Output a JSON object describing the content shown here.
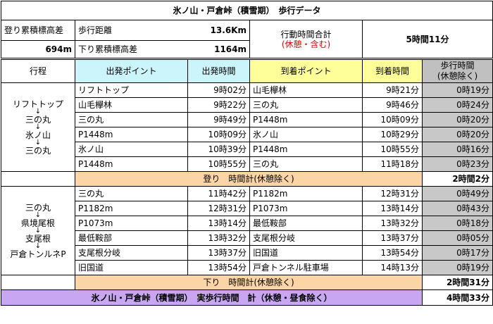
{
  "title": "氷ノ山・戸倉峠（積雪期）　歩行データ",
  "summary": {
    "ascent_label": "登り累積標高差",
    "ascent_value": "694m",
    "distance_label": "歩行距離",
    "distance_value": "13.6Km",
    "descent_label": "下り累積標高差",
    "descent_value": "1164m",
    "action_time_label": "行動時間合計",
    "action_time_note": "(休憩・含む)",
    "action_time_value": "5時間11分"
  },
  "headers": {
    "route": "行程",
    "depart_point": "出発ポイント",
    "depart_time": "出発時間",
    "arrive_point": "到着ポイント",
    "arrive_time": "到着時間",
    "walk_time_1": "歩行時間",
    "walk_time_2": "(休憩除く)"
  },
  "sections": [
    {
      "route": [
        "リフトトップ",
        "三の丸",
        "氷ノ山",
        "三の丸"
      ],
      "rows": [
        {
          "from": "リフトトップ",
          "dep": "9時02分",
          "to": "山毛欅林",
          "arr": "9時21分",
          "walk": "0時19分"
        },
        {
          "from": "山毛欅林",
          "dep": "9時22分",
          "to": "三の丸",
          "arr": "9時46分",
          "walk": "0時24分"
        },
        {
          "from": "三の丸",
          "dep": "9時49分",
          "to": "P1448m",
          "arr": "10時09分",
          "walk": "0時20分"
        },
        {
          "from": "P1448m",
          "dep": "10時09分",
          "to": "氷ノ山",
          "arr": "10時29分",
          "walk": "0時20分"
        },
        {
          "from": "氷ノ山",
          "dep": "10時39分",
          "to": "P1448m",
          "arr": "10時55分",
          "walk": "0時16分"
        },
        {
          "from": "P1448m",
          "dep": "10時55分",
          "to": "三の丸",
          "arr": "11時18分",
          "walk": "0時23分"
        }
      ],
      "subtotal_label": "登り　時間計(休憩除く)",
      "subtotal_value": "2時間2分"
    },
    {
      "route": [
        "三の丸",
        "県境尾根",
        "支尾根",
        "戸倉トンルネP"
      ],
      "rows": [
        {
          "from": "三の丸",
          "dep": "11時42分",
          "to": "P1182m",
          "arr": "12時31分",
          "walk": "0時49分"
        },
        {
          "from": "P1182m",
          "dep": "12時31分",
          "to": "P1073m",
          "arr": "13時14分",
          "walk": "0時43分"
        },
        {
          "from": "P1073m",
          "dep": "13時14分",
          "to": "最低鞍部",
          "arr": "13時32分",
          "walk": "0時18分"
        },
        {
          "from": "最低鞍部",
          "dep": "13時32分",
          "to": "支尾根分岐",
          "arr": "13時37分",
          "walk": "0時05分"
        },
        {
          "from": "支尾根分岐",
          "dep": "13時37分",
          "to": "旧国道",
          "arr": "13時54分",
          "walk": "0時17分"
        },
        {
          "from": "旧国道",
          "dep": "13時54分",
          "to": "戸倉トンネル駐車場",
          "arr": "14時13分",
          "walk": "0時19分"
        }
      ],
      "subtotal_label": "下り　時間計(休憩除く)",
      "subtotal_value": "2時間31分"
    }
  ],
  "total": {
    "label": "氷ノ山・戸倉峠（積雪期）　実歩行時間　計（休憩・昼食除く）",
    "value": "4時間33分"
  },
  "colors": {
    "header_cyan": "#ccf4fb",
    "header_yellow": "#ffff99",
    "walk_gray": "#c8c8c8",
    "subtotal_orange": "#fcd5a6",
    "total_purple": "#c9a6f1",
    "note_red": "#e00000"
  }
}
